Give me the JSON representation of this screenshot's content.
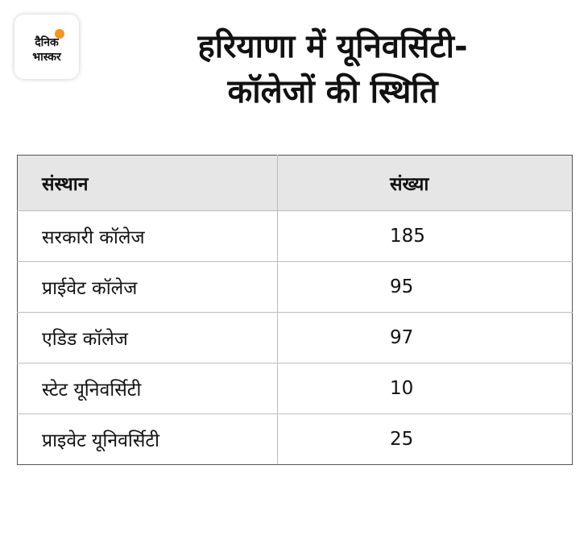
{
  "logo": {
    "line1": "दैनिक",
    "line2": "भास्कर",
    "accent_color": "#f7941d",
    "icon": "sun-dot-icon"
  },
  "title": {
    "line1": "हरियाणा में यूनिवर्सिटी-",
    "line2": "कॉलेजों की स्थिति"
  },
  "table": {
    "headers": [
      "संस्थान",
      "संख्या"
    ],
    "header_bg": "#e6e6e6",
    "rows": [
      {
        "name": "सरकारी कॉलेज",
        "count": "185"
      },
      {
        "name": "प्राईवेट कॉलेज",
        "count": "95"
      },
      {
        "name": "एडिड कॉलेज",
        "count": "97"
      },
      {
        "name": "स्टेट यूनिवर्सिटी",
        "count": "10"
      },
      {
        "name": "प्राइवेट यूनिवर्सिटी",
        "count": "25"
      }
    ]
  }
}
